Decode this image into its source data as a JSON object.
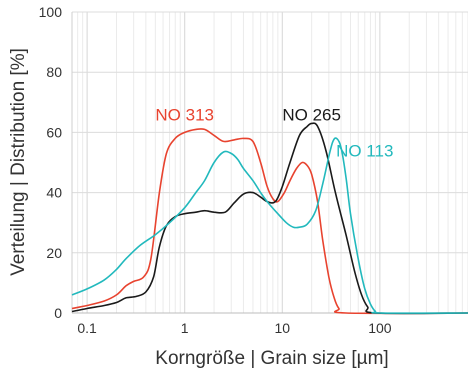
{
  "chart_data": {
    "type": "line",
    "xlabel": "Korngröße  |  Grain size [µm]",
    "ylabel": "Verteilung  |  Distribution [%]",
    "xscale": "log",
    "xlim": [
      0.07,
      800
    ],
    "ylim": [
      0,
      100
    ],
    "xticks": [
      {
        "value": 0.1,
        "label": "0.1"
      },
      {
        "value": 1,
        "label": "1"
      },
      {
        "value": 10,
        "label": "10"
      },
      {
        "value": 100,
        "label": "100"
      }
    ],
    "yticks": [
      {
        "value": 0,
        "label": "0"
      },
      {
        "value": 20,
        "label": "20"
      },
      {
        "value": 40,
        "label": "40"
      },
      {
        "value": 60,
        "label": "60"
      },
      {
        "value": 80,
        "label": "80"
      },
      {
        "value": 100,
        "label": "100"
      }
    ],
    "grid": "log-minor vertical, major horizontal",
    "series": [
      {
        "name": "NO 313",
        "color": "#e8432f",
        "label_at": {
          "x": 1.0,
          "y": 66
        },
        "points": [
          [
            0.07,
            1.5
          ],
          [
            0.1,
            2.5
          ],
          [
            0.15,
            4
          ],
          [
            0.2,
            6
          ],
          [
            0.25,
            9
          ],
          [
            0.3,
            10.5
          ],
          [
            0.38,
            12
          ],
          [
            0.45,
            18
          ],
          [
            0.55,
            40
          ],
          [
            0.65,
            53
          ],
          [
            0.8,
            58
          ],
          [
            1.0,
            60
          ],
          [
            1.3,
            61
          ],
          [
            1.6,
            61
          ],
          [
            2.0,
            59
          ],
          [
            2.5,
            57
          ],
          [
            3.2,
            57.5
          ],
          [
            4.0,
            58
          ],
          [
            5.0,
            57
          ],
          [
            6.0,
            50
          ],
          [
            7.0,
            42
          ],
          [
            8.0,
            38
          ],
          [
            9.0,
            37
          ],
          [
            10.5,
            40
          ],
          [
            12.0,
            44
          ],
          [
            14.0,
            48
          ],
          [
            16.0,
            50
          ],
          [
            18.0,
            49
          ],
          [
            20.0,
            46
          ],
          [
            23.0,
            37
          ],
          [
            26.0,
            24
          ],
          [
            30.0,
            12
          ],
          [
            34.0,
            5
          ],
          [
            38.0,
            1.5
          ],
          [
            45.0,
            0
          ],
          [
            800,
            0
          ]
        ]
      },
      {
        "name": "NO 265",
        "color": "#1a1a1a",
        "label_at": {
          "x": 20.0,
          "y": 66
        },
        "points": [
          [
            0.07,
            0.5
          ],
          [
            0.1,
            1.5
          ],
          [
            0.15,
            2.5
          ],
          [
            0.2,
            3.5
          ],
          [
            0.25,
            5
          ],
          [
            0.32,
            5.5
          ],
          [
            0.4,
            7
          ],
          [
            0.48,
            12
          ],
          [
            0.55,
            22
          ],
          [
            0.65,
            29
          ],
          [
            0.8,
            32
          ],
          [
            1.0,
            33
          ],
          [
            1.3,
            33.5
          ],
          [
            1.6,
            34
          ],
          [
            2.0,
            33.5
          ],
          [
            2.6,
            33.5
          ],
          [
            3.2,
            36.5
          ],
          [
            4.0,
            39.5
          ],
          [
            5.0,
            40
          ],
          [
            6.0,
            38.5
          ],
          [
            7.0,
            37
          ],
          [
            8.5,
            37
          ],
          [
            10.0,
            42
          ],
          [
            12.0,
            50
          ],
          [
            15.0,
            59
          ],
          [
            18.0,
            62
          ],
          [
            20.0,
            63
          ],
          [
            23.0,
            62
          ],
          [
            28.0,
            54
          ],
          [
            35.0,
            40
          ],
          [
            45.0,
            26
          ],
          [
            55.0,
            14
          ],
          [
            65.0,
            6
          ],
          [
            75.0,
            2
          ],
          [
            90.0,
            0
          ],
          [
            800,
            0
          ]
        ]
      },
      {
        "name": "NO 113",
        "color": "#22b9bd",
        "label_at": {
          "x": 70.0,
          "y": 54
        },
        "points": [
          [
            0.07,
            6
          ],
          [
            0.1,
            8
          ],
          [
            0.15,
            11
          ],
          [
            0.2,
            14.5
          ],
          [
            0.25,
            18
          ],
          [
            0.35,
            22.5
          ],
          [
            0.5,
            26
          ],
          [
            0.7,
            30
          ],
          [
            1.0,
            35
          ],
          [
            1.3,
            40
          ],
          [
            1.6,
            44
          ],
          [
            2.0,
            50
          ],
          [
            2.5,
            53.5
          ],
          [
            3.0,
            53
          ],
          [
            3.5,
            51
          ],
          [
            4.0,
            48
          ],
          [
            5.0,
            44
          ],
          [
            6.0,
            40
          ],
          [
            7.0,
            37
          ],
          [
            9.0,
            33
          ],
          [
            11.0,
            30
          ],
          [
            13.0,
            28.5
          ],
          [
            15.0,
            28.5
          ],
          [
            18.0,
            29.5
          ],
          [
            22.0,
            34
          ],
          [
            26.0,
            43
          ],
          [
            30.0,
            52
          ],
          [
            33.0,
            57
          ],
          [
            36.0,
            58
          ],
          [
            40.0,
            55
          ],
          [
            45.0,
            45
          ],
          [
            50.0,
            33
          ],
          [
            60.0,
            18
          ],
          [
            70.0,
            8
          ],
          [
            80.0,
            3
          ],
          [
            90.0,
            0.5
          ],
          [
            100.0,
            0
          ],
          [
            800,
            0
          ]
        ]
      }
    ]
  }
}
